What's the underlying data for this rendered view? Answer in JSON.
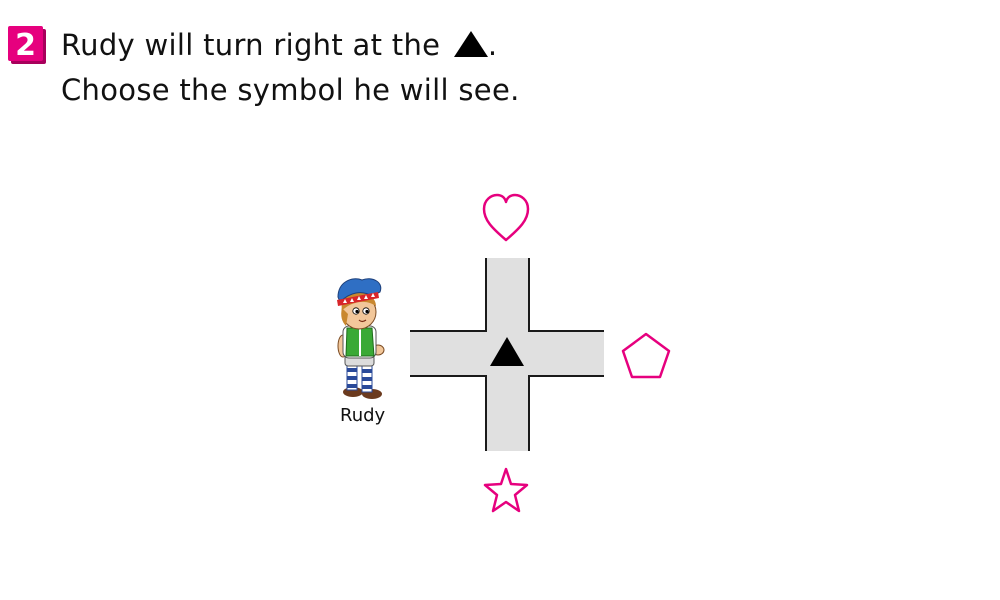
{
  "question": {
    "number": "2",
    "line1_prefix": "Rudy will turn right at the",
    "line1_suffix": ".",
    "line2": "Choose the symbol he will see."
  },
  "character": {
    "name": "Rudy"
  },
  "symbols": {
    "top": "heart",
    "right": "pentagon",
    "bottom": "star",
    "center": "triangle"
  },
  "colors": {
    "badge": "#e6007e",
    "symbol": "#e6007e",
    "road": "#e0e0e0",
    "road_edge": "#1a1a1a"
  }
}
